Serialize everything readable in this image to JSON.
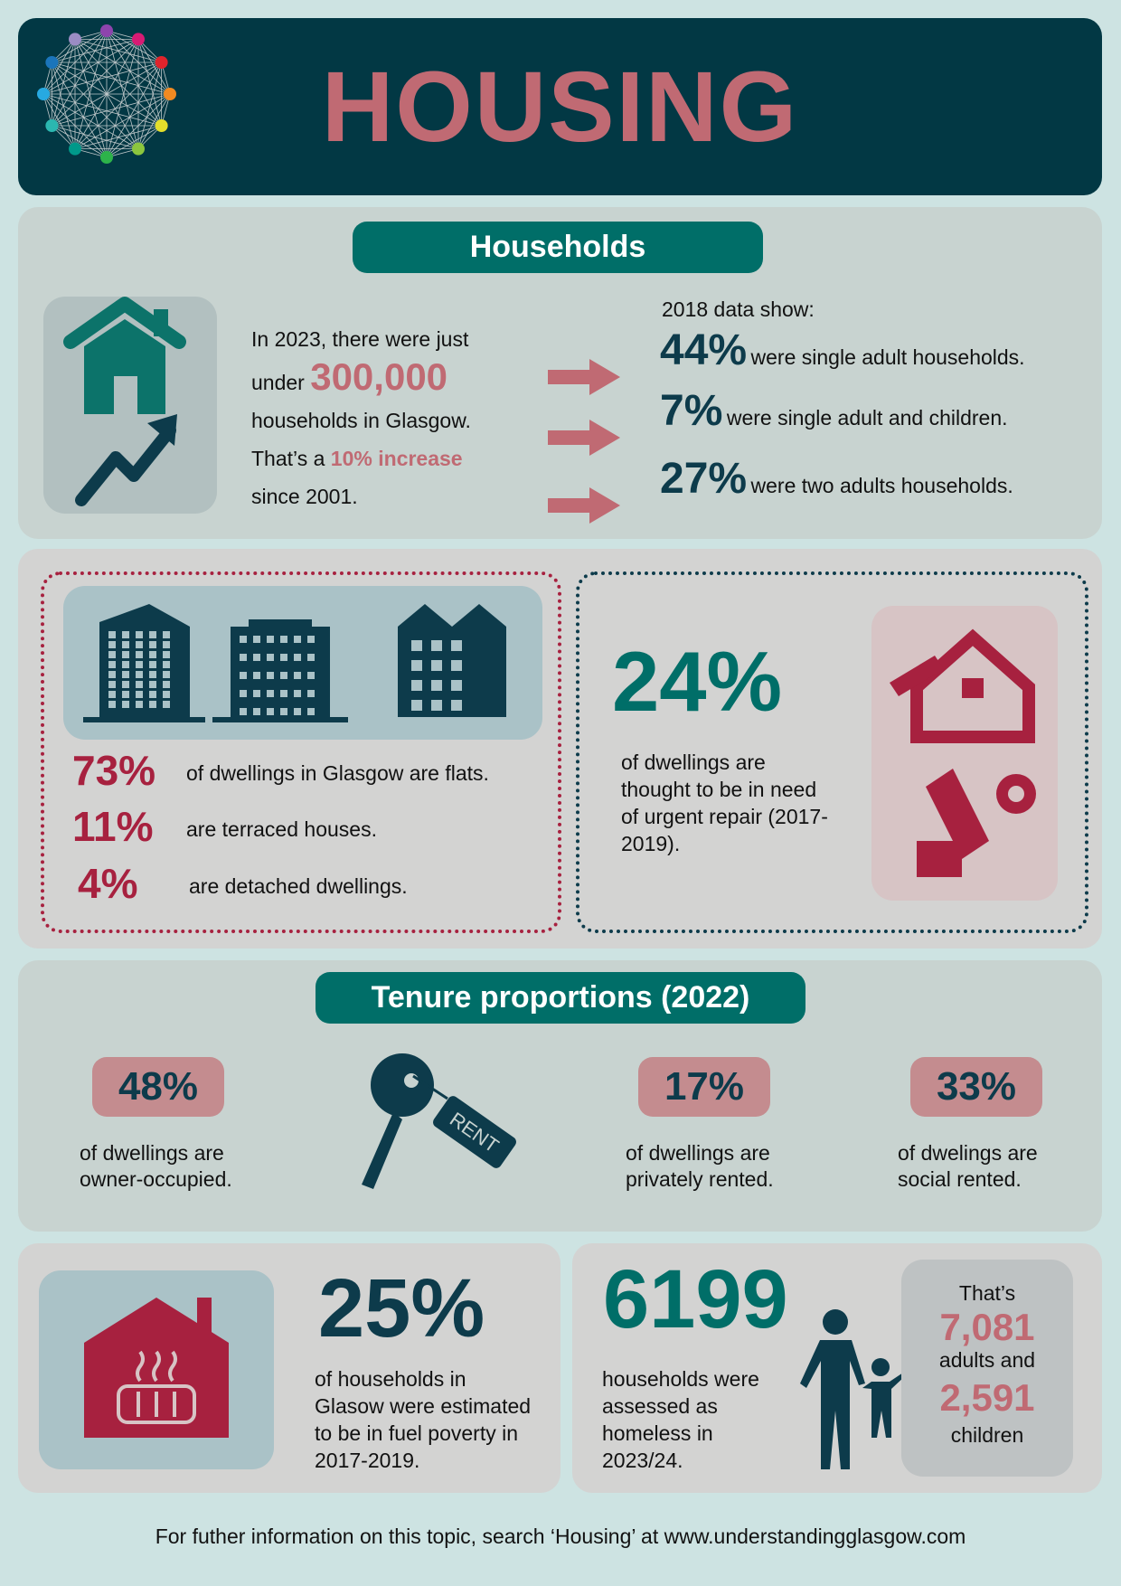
{
  "header": {
    "title": "HOUSING",
    "logo": "network-globe-logo"
  },
  "households": {
    "heading": "Households",
    "intro_line1": "In 2023, there were just",
    "intro_under": "under",
    "intro_number": "300,000",
    "intro_line3": "households in Glasgow.",
    "intro_that": "That’s a",
    "intro_increase": "10% increase",
    "intro_since": "since 2001.",
    "data_label": "2018 data show:",
    "stats": [
      {
        "value": "44%",
        "text": "were single adult households."
      },
      {
        "value": "7%",
        "text": "were single adult and children."
      },
      {
        "value": "27%",
        "text": "were two adults households."
      }
    ]
  },
  "dwellings": {
    "types": [
      {
        "value": "73%",
        "text": "of dwellings in Glasgow are flats."
      },
      {
        "value": "11%",
        "text": "are terraced houses."
      },
      {
        "value": "4%",
        "text": "are detached dwellings."
      }
    ],
    "repair_value": "24%",
    "repair_text": "of dwellings are thought to be in need of urgent repair (2017-2019)."
  },
  "tenure": {
    "heading": "Tenure proportions (2022)",
    "items": [
      {
        "value": "48%",
        "line1": "of dwellings are",
        "line2": "owner-occupied."
      },
      {
        "value": "17%",
        "line1": "of dwellings are",
        "line2": "privately rented."
      },
      {
        "value": "33%",
        "line1": "of dwelings are",
        "line2": "social rented."
      }
    ],
    "key_tag": "RENT"
  },
  "fuel": {
    "value": "25%",
    "text": "of households in Glasow were estimated to be in fuel poverty in 2017-2019."
  },
  "homeless": {
    "value": "6199",
    "text": "households were assessed as homeless in 2023/24.",
    "thats": "That’s",
    "adults_value": "7,081",
    "adults_label": "adults and",
    "children_value": "2,591",
    "children_label": "children"
  },
  "footer": "For futher information on this topic, search ‘Housing’ at www.understandingglasgow.com",
  "colors": {
    "background": "#cde3e2",
    "header": "#023844",
    "accent_teal": "#006e68",
    "accent_pink": "#c06a73",
    "crimson": "#a7213f",
    "navy": "#0d3b4b"
  }
}
